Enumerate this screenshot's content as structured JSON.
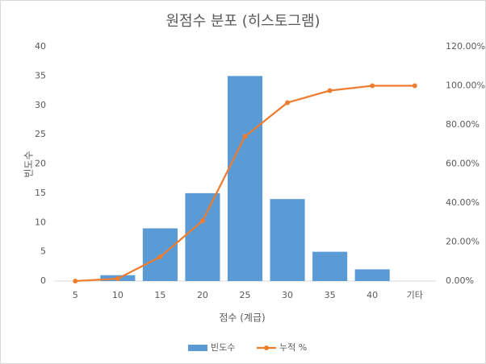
{
  "chart_data": {
    "type": "bar",
    "title": "원점수 분포 (히스토그램)",
    "x_label": "점수 (계급)",
    "y_label": "빈도수",
    "categories": [
      "5",
      "10",
      "15",
      "20",
      "25",
      "30",
      "35",
      "40",
      "기타"
    ],
    "series": [
      {
        "name": "빈도수",
        "type": "bar",
        "color": "#5b9bd5",
        "values": [
          0,
          1,
          9,
          15,
          35,
          14,
          5,
          2,
          0
        ]
      },
      {
        "name": "누적 %",
        "type": "line",
        "axis": "y2",
        "color": "#ed7d31",
        "values": [
          0,
          1.23,
          12.35,
          30.86,
          74.07,
          91.36,
          97.53,
          100,
          100
        ]
      }
    ],
    "ylim": [
      0,
      40
    ],
    "yticks": [
      0,
      5,
      10,
      15,
      20,
      25,
      30,
      35,
      40
    ],
    "y2lim": [
      0,
      120
    ],
    "y2ticks": [
      {
        "value": 0,
        "label": "0.00%"
      },
      {
        "value": 20,
        "label": "20.00%"
      },
      {
        "value": 40,
        "label": "40.00%"
      },
      {
        "value": 60,
        "label": "60.00%"
      },
      {
        "value": 80,
        "label": "80.00%"
      },
      {
        "value": 100,
        "label": "100.00%"
      },
      {
        "value": 120,
        "label": "120.00%"
      }
    ],
    "grid": false,
    "legend": "bottom"
  }
}
